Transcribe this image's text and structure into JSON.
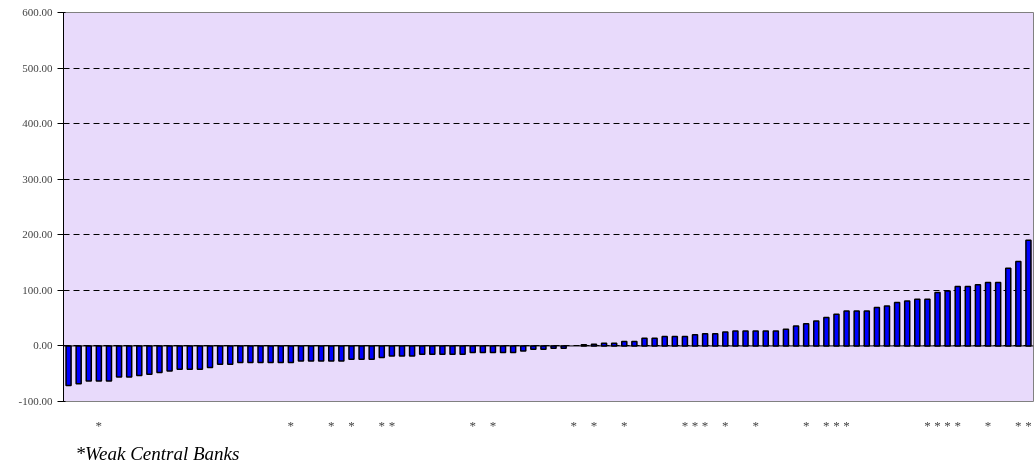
{
  "chart_data": {
    "type": "bar",
    "categories": [
      null,
      null,
      null,
      "*",
      null,
      null,
      null,
      null,
      null,
      null,
      null,
      null,
      null,
      null,
      null,
      null,
      null,
      null,
      null,
      null,
      null,
      null,
      "*",
      null,
      null,
      null,
      "*",
      null,
      "*",
      null,
      null,
      "*",
      "*",
      null,
      null,
      null,
      null,
      null,
      null,
      null,
      "*",
      null,
      "*",
      null,
      null,
      null,
      null,
      null,
      null,
      null,
      "*",
      null,
      "*",
      null,
      null,
      "*",
      null,
      null,
      null,
      null,
      null,
      "*",
      "*",
      "*",
      null,
      "*",
      null,
      null,
      "*",
      null,
      null,
      null,
      null,
      "*",
      null,
      "*",
      "*",
      "*",
      null,
      null,
      null,
      null,
      null,
      null,
      null,
      "*",
      "*",
      "*",
      "*",
      null,
      null,
      "*",
      null,
      null,
      "*",
      "*"
    ],
    "values": [
      -71,
      -68,
      -63,
      -63,
      -63,
      -56,
      -56,
      -53,
      -51,
      -48,
      -45,
      -42,
      -42,
      -42,
      -39,
      -33,
      -33,
      -30,
      -30,
      -30,
      -30,
      -30,
      -30,
      -27,
      -27,
      -27,
      -27,
      -27,
      -24,
      -24,
      -24,
      -21,
      -18,
      -18,
      -18,
      -15,
      -15,
      -15,
      -15,
      -15,
      -12,
      -12,
      -12,
      -12,
      -12,
      -9,
      -6,
      -6,
      -4,
      -4,
      null,
      2,
      3,
      5,
      5,
      8,
      8,
      14,
      14,
      17,
      17,
      17,
      20,
      22,
      22,
      25,
      27,
      27,
      27,
      27,
      27,
      30,
      36,
      40,
      45,
      51,
      57,
      63,
      63,
      63,
      69,
      72,
      78,
      81,
      84,
      84,
      96,
      99,
      107,
      107,
      110,
      114,
      114,
      140,
      152,
      190
    ],
    "color": "#0000ff",
    "ylim": [
      -100,
      600
    ],
    "yticks": [
      {
        "value": -100,
        "label": "-100.00"
      },
      {
        "value": 0,
        "label": "0.00"
      },
      {
        "value": 100,
        "label": "100.00"
      },
      {
        "value": 200,
        "label": "200.00"
      },
      {
        "value": 300,
        "label": "300.00"
      },
      {
        "value": 400,
        "label": "400.00"
      },
      {
        "value": 500,
        "label": "500.00"
      },
      {
        "value": 600,
        "label": "600.00"
      }
    ],
    "grid": "y",
    "annotations": [
      "*Weak Central Banks"
    ]
  }
}
